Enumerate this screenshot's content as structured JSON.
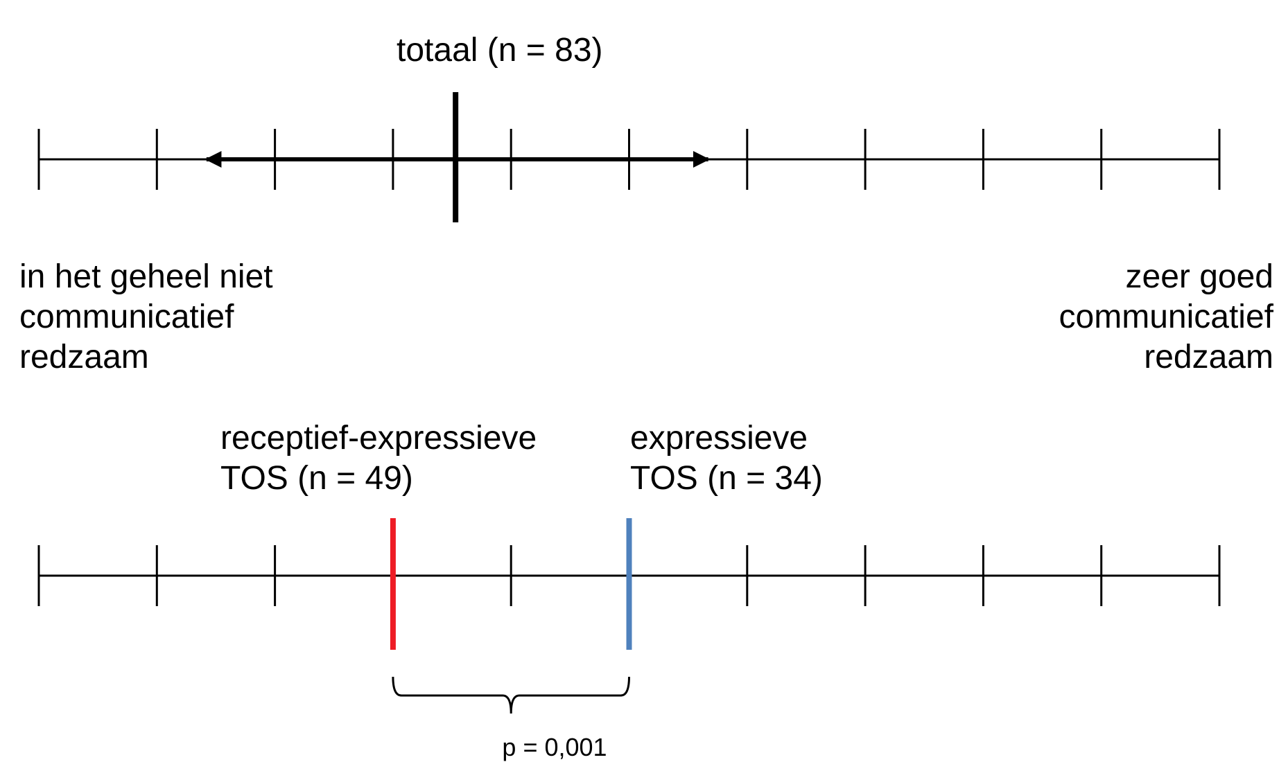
{
  "diagram": {
    "scale_ticks": 10,
    "scale_min_label": [
      "in het geheel niet",
      "communicatief",
      "redzaam"
    ],
    "scale_max_label": [
      "zeer goed",
      "communicatief",
      "redzaam"
    ],
    "total": {
      "label": "totaal (n = 83)",
      "position": 3.53,
      "range": [
        1.42,
        5.67
      ],
      "color": "#000000"
    },
    "groups": [
      {
        "label_lines": [
          "receptief-expressieve",
          "TOS (n = 49)"
        ],
        "position": 3.0,
        "color": "#ee1c25"
      },
      {
        "label_lines": [
          "expressieve",
          "TOS (n = 34)"
        ],
        "position": 5.0,
        "color": "#4f81bd"
      }
    ],
    "significance": {
      "label": "p = 0,001"
    }
  }
}
